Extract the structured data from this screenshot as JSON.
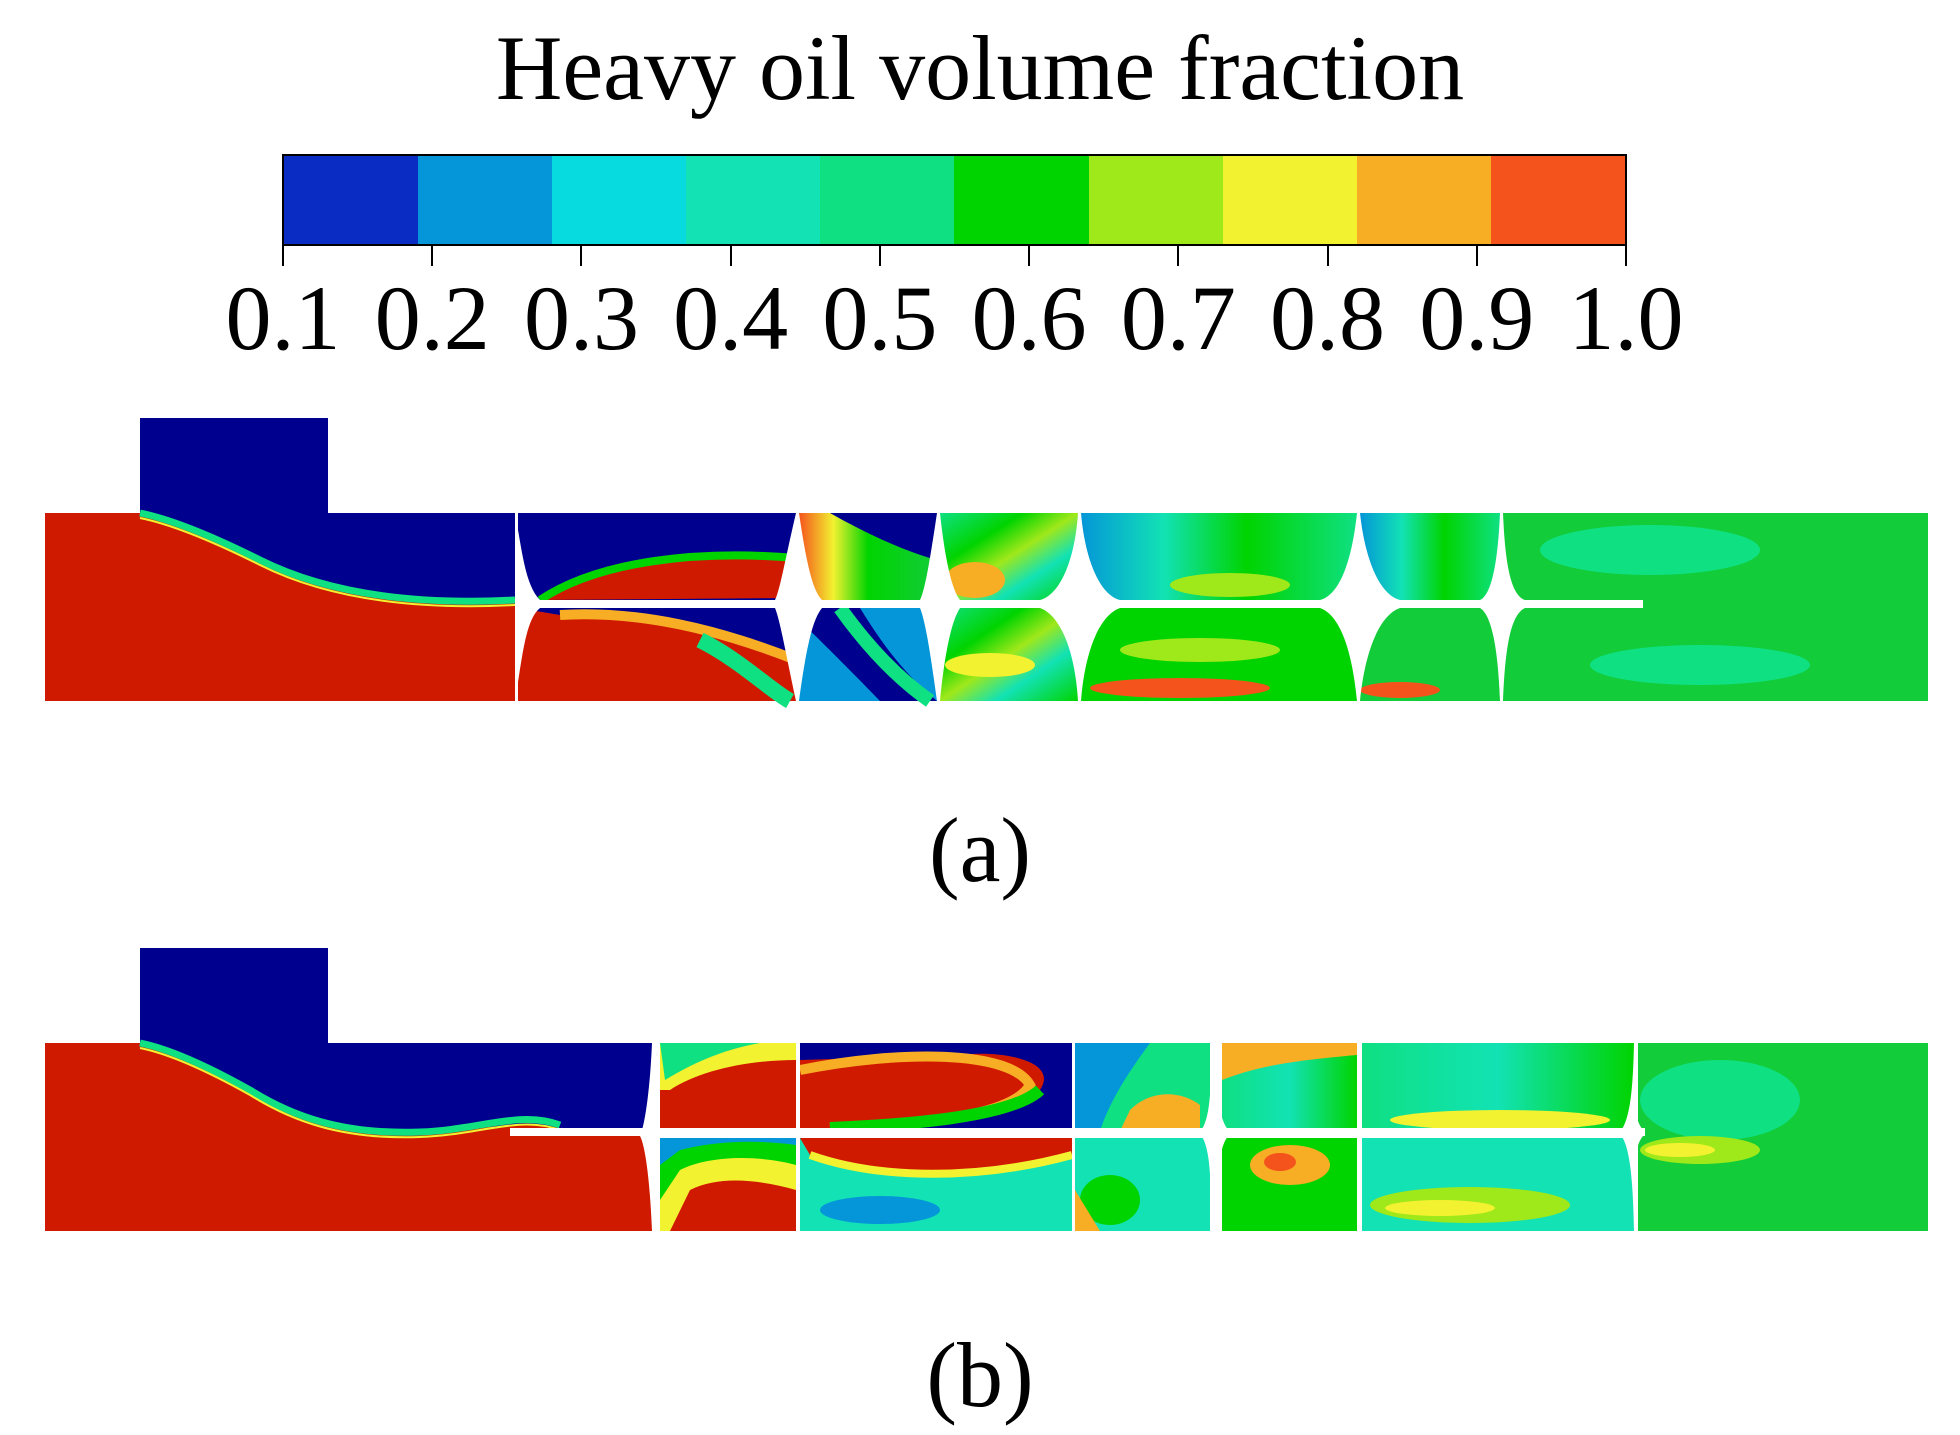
{
  "legend": {
    "title": "Heavy oil volume fraction",
    "tick_labels": [
      "0.1",
      "0.2",
      "0.3",
      "0.4",
      "0.5",
      "0.6",
      "0.7",
      "0.8",
      "0.9",
      "1.0"
    ],
    "colors": [
      "#0a2cc2",
      "#0496d8",
      "#08dbe0",
      "#12e2b4",
      "#0fe082",
      "#00d400",
      "#9fe81a",
      "#f2f230",
      "#f8ae24",
      "#f4541c"
    ]
  },
  "field_colors": {
    "low": "#00008f",
    "high": "#d01a00",
    "mid": "#12cc3a",
    "gap": "#ffffff"
  },
  "panels": [
    {
      "caption": "(a)"
    },
    {
      "caption": "(b)"
    }
  ]
}
